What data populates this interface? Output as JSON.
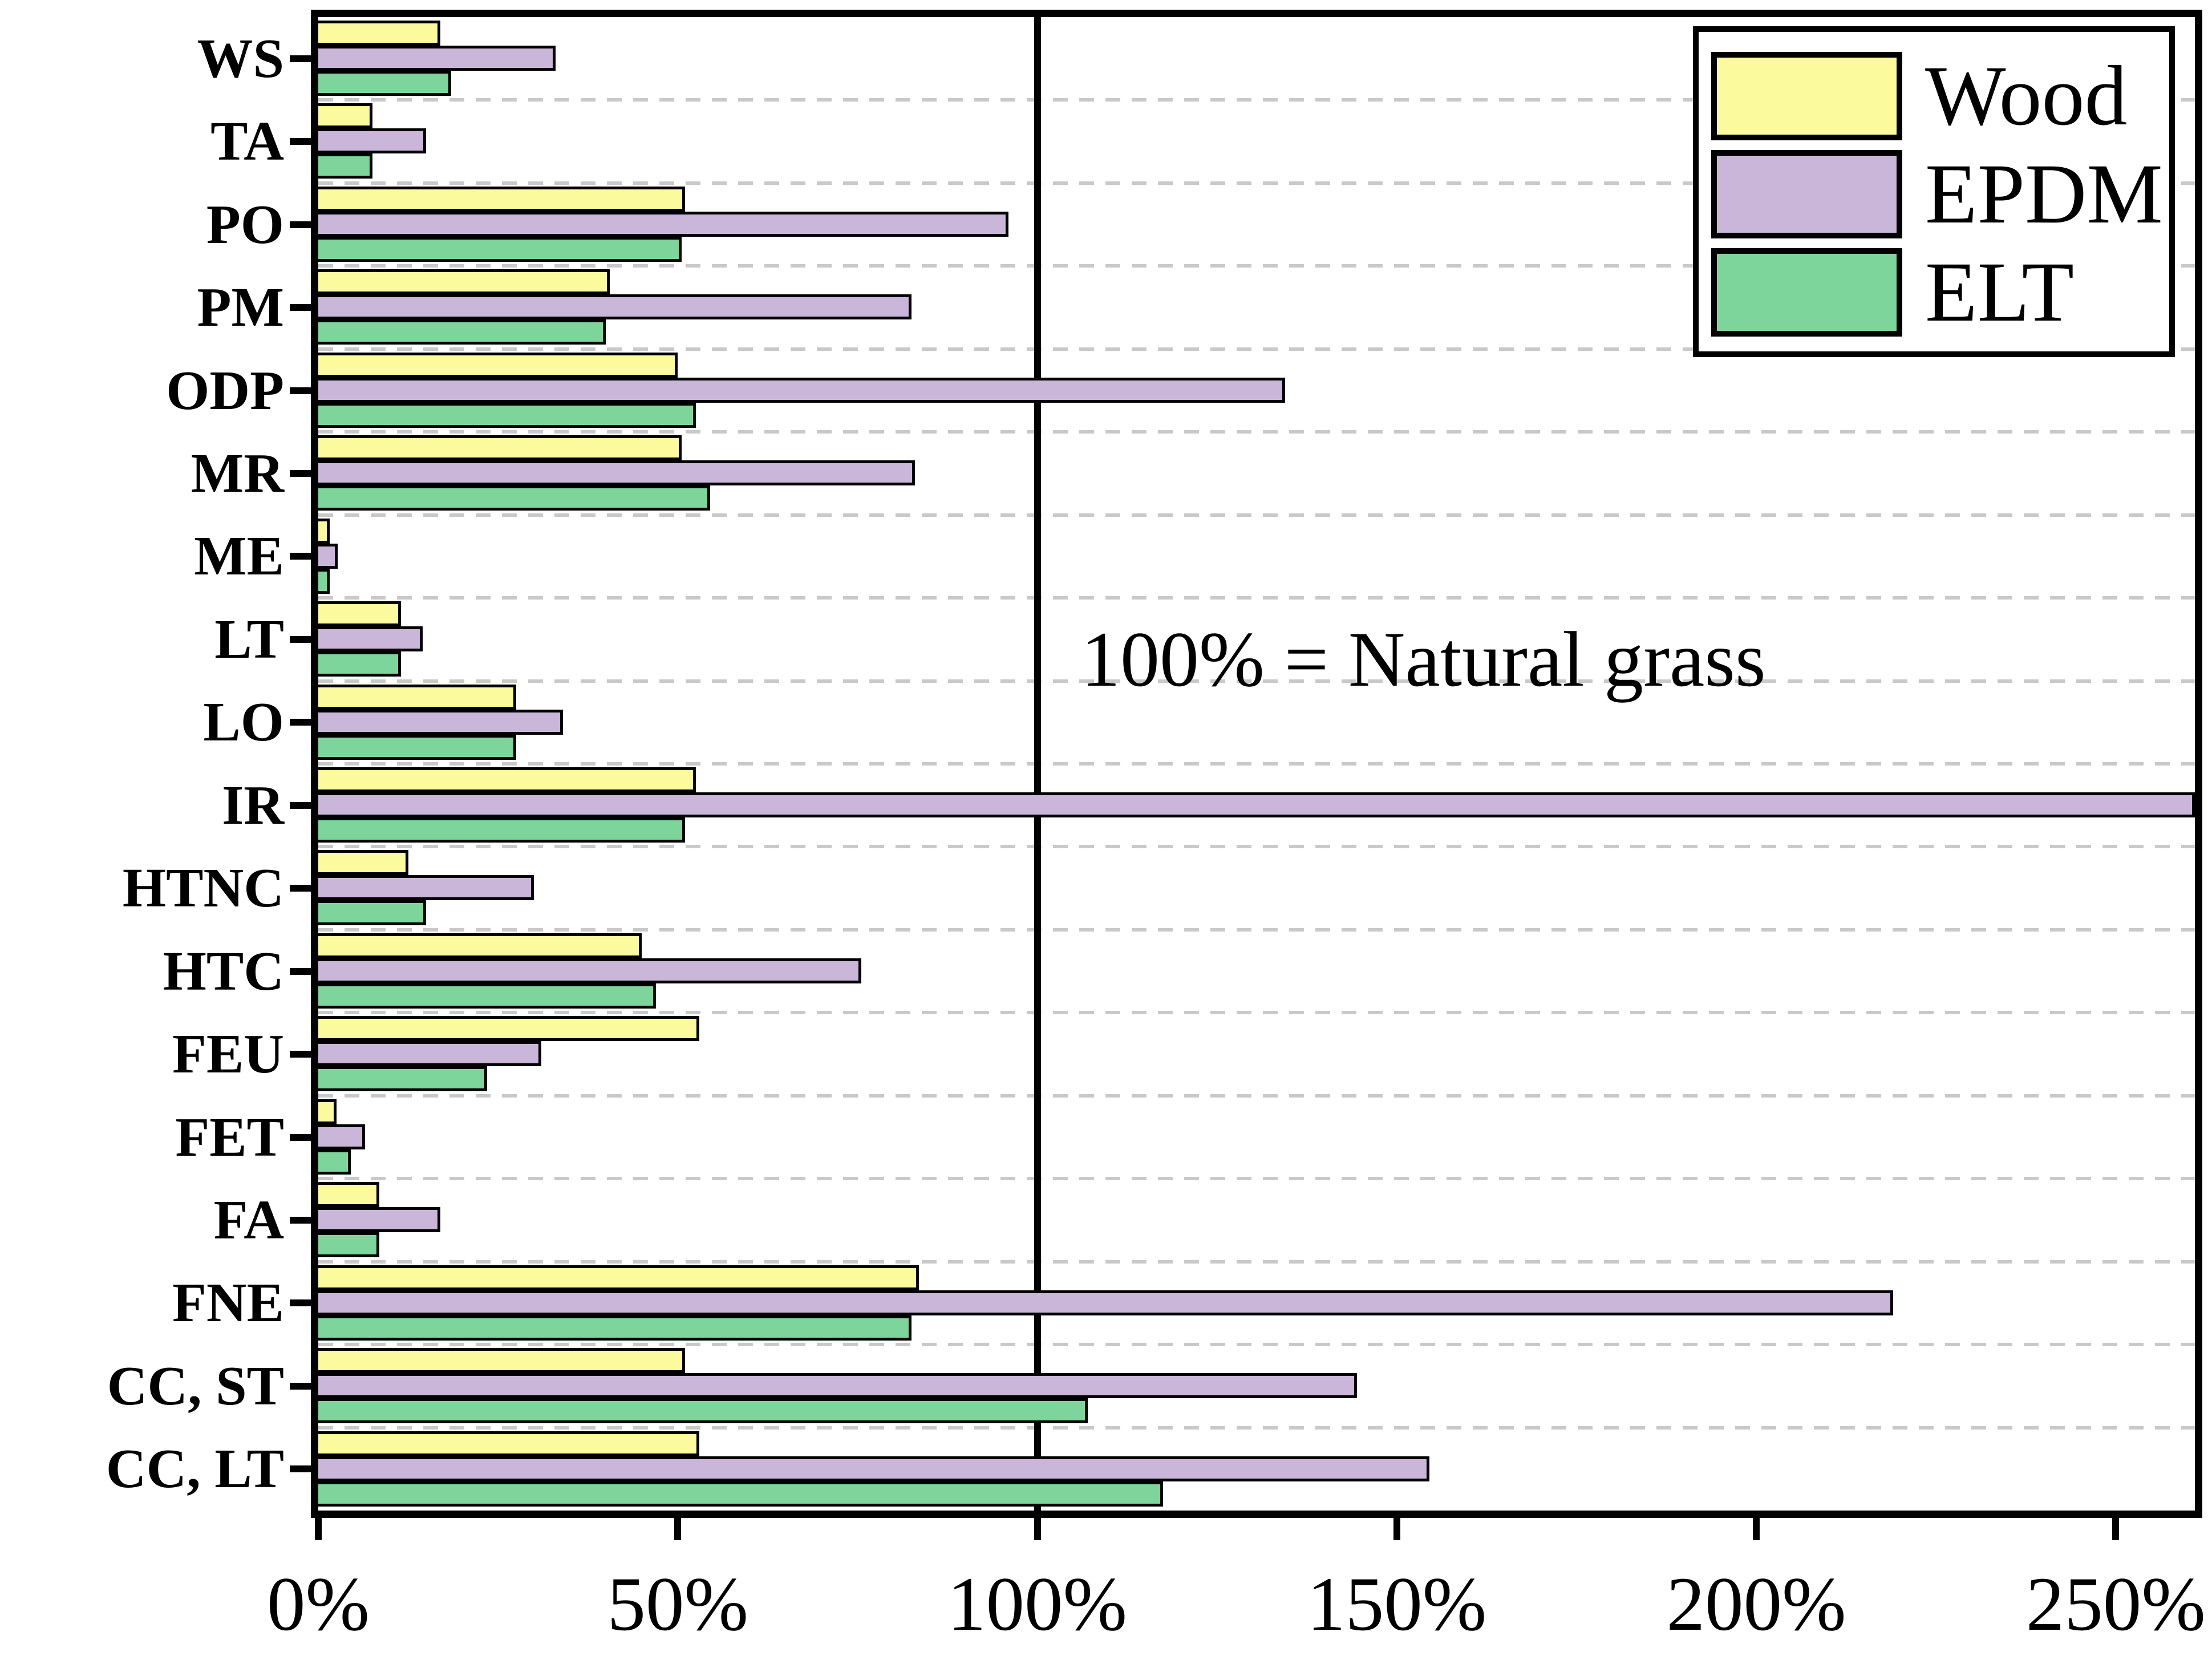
{
  "chart_data": {
    "type": "bar",
    "orientation": "horizontal",
    "unit": "%",
    "categories": [
      "WS",
      "TA",
      "PO",
      "PM",
      "ODP",
      "MR",
      "ME",
      "LT",
      "LO",
      "IR",
      "HTNC",
      "HTC",
      "FEU",
      "FET",
      "FA",
      "FNE",
      "CC, ST",
      "CC, LT"
    ],
    "series": [
      {
        "name": "Wood",
        "color": "#fbfb9e",
        "values": [
          17,
          7.5,
          51,
          40.5,
          50,
          50.5,
          1.6,
          11.5,
          27.5,
          52.5,
          12.5,
          45,
          53,
          2.5,
          8.5,
          83.5,
          51,
          53
        ]
      },
      {
        "name": "EPDM",
        "color": "#c9b6d9",
        "values": [
          33,
          15,
          96,
          82.5,
          134.5,
          83,
          2.7,
          14.5,
          34,
          262,
          30,
          75.5,
          31,
          6.5,
          17,
          219,
          144.5,
          154.5
        ]
      },
      {
        "name": "ELT",
        "color": "#7ed59b",
        "values": [
          18.5,
          7.5,
          50.5,
          40,
          52.5,
          54.5,
          1.6,
          11.5,
          27.5,
          51,
          15,
          47,
          23.5,
          4.5,
          8.5,
          82.5,
          107,
          117.5
        ]
      }
    ],
    "xlabel": "",
    "ylabel": "",
    "xlim": [
      0,
      261
    ],
    "xticks": [
      {
        "value": 0,
        "label": "0%"
      },
      {
        "value": 50,
        "label": "50%"
      },
      {
        "value": 100,
        "label": "100%"
      },
      {
        "value": 150,
        "label": "150%"
      },
      {
        "value": 200,
        "label": "200%"
      },
      {
        "value": 250,
        "label": "250%"
      }
    ],
    "reference_line": {
      "value": 100,
      "color": "#000000"
    },
    "annotation": {
      "text": "100% = Natural grass"
    },
    "legend": {
      "position": "top-right",
      "entries": [
        "Wood",
        "EPDM",
        "ELT"
      ]
    },
    "grid": {
      "horizontal_dashed_between_groups": true,
      "color": "#c9c9c9"
    },
    "note": "IR EPDM bar is clipped at the right edge of the axis (exceeds axis maximum)"
  },
  "colors": {
    "bar_border": "#000000",
    "axis": "#000000",
    "background": "#ffffff",
    "gridline": "#c9c9c9"
  }
}
